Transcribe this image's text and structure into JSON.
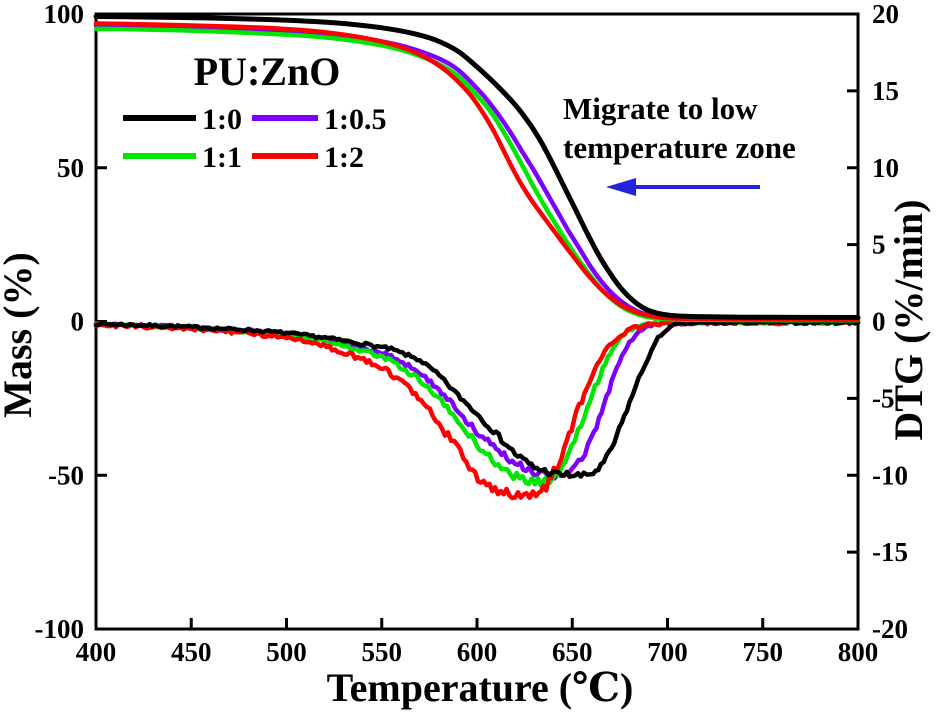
{
  "chart_data": {
    "type": "line",
    "title": "",
    "xlabel": "Temperature (℃)",
    "ylabel_left": "Mass (%)",
    "ylabel_right": "DTG (%/min)",
    "x_range": [
      400,
      800
    ],
    "x_ticks": [
      400,
      450,
      500,
      550,
      600,
      650,
      700,
      750,
      800
    ],
    "y_left_range": [
      -100,
      100
    ],
    "y_left_ticks": [
      -100,
      -50,
      0,
      50,
      100
    ],
    "y_right_range": [
      -20,
      20
    ],
    "y_right_ticks": [
      -20,
      -15,
      -10,
      -5,
      0,
      5,
      10,
      15,
      20
    ],
    "grid": false,
    "frame": true,
    "legend": {
      "title": "PU:ZnO",
      "position": "upper-left",
      "entries": [
        {
          "label": "1:0",
          "color": "#000000"
        },
        {
          "label": "1:0.5",
          "color": "#7D00FA"
        },
        {
          "label": "1:1",
          "color": "#00E600"
        },
        {
          "label": "1:2",
          "color": "#FF0000"
        }
      ]
    },
    "annotation": {
      "line1": "Migrate to low",
      "line2": "temperature zone",
      "color": "#2323D9",
      "arrow_direction": "left"
    },
    "series_tg": [
      {
        "name": "1:0",
        "color": "#000000",
        "points": [
          [
            400,
            99.2
          ],
          [
            430,
            99.0
          ],
          [
            460,
            98.7
          ],
          [
            490,
            98.2
          ],
          [
            510,
            97.7
          ],
          [
            530,
            96.9
          ],
          [
            550,
            95.5
          ],
          [
            565,
            93.9
          ],
          [
            578,
            91.6
          ],
          [
            590,
            87.9
          ],
          [
            600,
            82.8
          ],
          [
            610,
            77.0
          ],
          [
            620,
            70.5
          ],
          [
            628,
            64.0
          ],
          [
            634,
            58.0
          ],
          [
            640,
            51.0
          ],
          [
            646,
            43.5
          ],
          [
            652,
            36.0
          ],
          [
            658,
            28.5
          ],
          [
            664,
            21.5
          ],
          [
            670,
            15.5
          ],
          [
            676,
            10.5
          ],
          [
            682,
            6.8
          ],
          [
            688,
            4.2
          ],
          [
            694,
            2.8
          ],
          [
            700,
            2.1
          ],
          [
            706,
            1.8
          ],
          [
            715,
            1.6
          ],
          [
            740,
            1.4
          ],
          [
            800,
            1.3
          ]
        ]
      },
      {
        "name": "1:0.5",
        "color": "#7D00FA",
        "points": [
          [
            400,
            96.2
          ],
          [
            430,
            95.9
          ],
          [
            460,
            95.4
          ],
          [
            490,
            94.7
          ],
          [
            510,
            94.0
          ],
          [
            530,
            92.9
          ],
          [
            550,
            91.1
          ],
          [
            565,
            88.9
          ],
          [
            580,
            85.5
          ],
          [
            590,
            81.9
          ],
          [
            600,
            75.8
          ],
          [
            608,
            70.0
          ],
          [
            616,
            63.0
          ],
          [
            624,
            55.0
          ],
          [
            630,
            49.0
          ],
          [
            636,
            42.5
          ],
          [
            642,
            36.0
          ],
          [
            648,
            29.5
          ],
          [
            654,
            23.5
          ],
          [
            660,
            17.5
          ],
          [
            666,
            12.5
          ],
          [
            672,
            8.5
          ],
          [
            678,
            5.5
          ],
          [
            684,
            3.4
          ],
          [
            690,
            2.1
          ],
          [
            696,
            1.3
          ],
          [
            710,
            0.8
          ],
          [
            740,
            0.6
          ],
          [
            800,
            0.5
          ]
        ]
      },
      {
        "name": "1:1",
        "color": "#00E600",
        "points": [
          [
            400,
            95.2
          ],
          [
            430,
            94.9
          ],
          [
            460,
            94.4
          ],
          [
            490,
            93.6
          ],
          [
            510,
            92.9
          ],
          [
            530,
            91.7
          ],
          [
            550,
            89.8
          ],
          [
            565,
            87.4
          ],
          [
            580,
            83.7
          ],
          [
            590,
            79.9
          ],
          [
            600,
            73.5
          ],
          [
            608,
            67.5
          ],
          [
            616,
            59.5
          ],
          [
            624,
            50.5
          ],
          [
            630,
            43.5
          ],
          [
            636,
            37.0
          ],
          [
            642,
            31.0
          ],
          [
            648,
            25.0
          ],
          [
            654,
            19.5
          ],
          [
            660,
            14.5
          ],
          [
            666,
            10.0
          ],
          [
            672,
            6.5
          ],
          [
            678,
            4.0
          ],
          [
            684,
            2.4
          ],
          [
            690,
            1.4
          ],
          [
            696,
            0.9
          ],
          [
            710,
            0.6
          ],
          [
            740,
            0.45
          ],
          [
            800,
            0.4
          ]
        ]
      },
      {
        "name": "1:2",
        "color": "#FF0000",
        "points": [
          [
            400,
            96.9
          ],
          [
            430,
            96.6
          ],
          [
            460,
            96.1
          ],
          [
            480,
            95.7
          ],
          [
            500,
            95.1
          ],
          [
            515,
            94.4
          ],
          [
            530,
            93.3
          ],
          [
            545,
            91.7
          ],
          [
            555,
            90.2
          ],
          [
            565,
            88.1
          ],
          [
            575,
            85.2
          ],
          [
            585,
            80.9
          ],
          [
            595,
            74.8
          ],
          [
            600,
            70.8
          ],
          [
            605,
            66.0
          ],
          [
            610,
            60.5
          ],
          [
            616,
            53.0
          ],
          [
            622,
            46.0
          ],
          [
            628,
            40.0
          ],
          [
            634,
            34.8
          ],
          [
            640,
            29.8
          ],
          [
            646,
            24.8
          ],
          [
            652,
            20.0
          ],
          [
            658,
            15.3
          ],
          [
            664,
            11.2
          ],
          [
            670,
            7.8
          ],
          [
            676,
            5.2
          ],
          [
            682,
            3.4
          ],
          [
            688,
            2.2
          ],
          [
            694,
            1.5
          ],
          [
            700,
            1.1
          ],
          [
            715,
            0.85
          ],
          [
            740,
            0.7
          ],
          [
            800,
            0.6
          ]
        ]
      }
    ],
    "series_dtg": [
      {
        "name": "1:0",
        "color": "#000000",
        "noise": 0.9,
        "points": [
          [
            400,
            -0.15
          ],
          [
            440,
            -0.3
          ],
          [
            480,
            -0.55
          ],
          [
            500,
            -0.75
          ],
          [
            520,
            -1.05
          ],
          [
            540,
            -1.45
          ],
          [
            555,
            -1.8
          ],
          [
            570,
            -2.5
          ],
          [
            580,
            -3.5
          ],
          [
            590,
            -4.8
          ],
          [
            600,
            -6.0
          ],
          [
            610,
            -7.3
          ],
          [
            620,
            -8.6
          ],
          [
            630,
            -9.5
          ],
          [
            640,
            -9.9
          ],
          [
            650,
            -10.0
          ],
          [
            656,
            -10.05
          ],
          [
            661,
            -9.85
          ],
          [
            665,
            -9.45
          ],
          [
            668,
            -8.9
          ],
          [
            672,
            -7.9
          ],
          [
            676,
            -6.6
          ],
          [
            680,
            -5.3
          ],
          [
            685,
            -3.7
          ],
          [
            690,
            -2.3
          ],
          [
            695,
            -1.1
          ],
          [
            700,
            -0.45
          ],
          [
            705,
            -0.18
          ],
          [
            712,
            -0.1
          ],
          [
            730,
            -0.07
          ],
          [
            800,
            -0.06
          ]
        ]
      },
      {
        "name": "1:0.5",
        "color": "#7D00FA",
        "noise": 1.0,
        "points": [
          [
            400,
            -0.17
          ],
          [
            440,
            -0.33
          ],
          [
            480,
            -0.6
          ],
          [
            500,
            -0.82
          ],
          [
            520,
            -1.15
          ],
          [
            540,
            -1.7
          ],
          [
            555,
            -2.25
          ],
          [
            570,
            -3.3
          ],
          [
            580,
            -4.4
          ],
          [
            590,
            -5.8
          ],
          [
            600,
            -7.2
          ],
          [
            610,
            -8.3
          ],
          [
            620,
            -9.2
          ],
          [
            630,
            -9.8
          ],
          [
            638,
            -10.05
          ],
          [
            645,
            -10.05
          ],
          [
            650,
            -9.7
          ],
          [
            655,
            -9.0
          ],
          [
            660,
            -7.7
          ],
          [
            664,
            -6.3
          ],
          [
            668,
            -4.9
          ],
          [
            672,
            -3.5
          ],
          [
            676,
            -2.3
          ],
          [
            680,
            -1.4
          ],
          [
            685,
            -0.7
          ],
          [
            690,
            -0.32
          ],
          [
            696,
            -0.14
          ],
          [
            710,
            -0.08
          ],
          [
            800,
            -0.06
          ]
        ]
      },
      {
        "name": "1:1",
        "color": "#00E600",
        "noise": 1.0,
        "points": [
          [
            400,
            -0.18
          ],
          [
            440,
            -0.36
          ],
          [
            480,
            -0.66
          ],
          [
            500,
            -0.9
          ],
          [
            520,
            -1.3
          ],
          [
            540,
            -1.9
          ],
          [
            555,
            -2.55
          ],
          [
            570,
            -3.8
          ],
          [
            580,
            -5.0
          ],
          [
            590,
            -6.5
          ],
          [
            600,
            -8.0
          ],
          [
            608,
            -9.0
          ],
          [
            616,
            -9.8
          ],
          [
            624,
            -10.3
          ],
          [
            632,
            -10.45
          ],
          [
            638,
            -10.3
          ],
          [
            643,
            -9.8
          ],
          [
            648,
            -8.7
          ],
          [
            653,
            -7.2
          ],
          [
            658,
            -5.6
          ],
          [
            662,
            -4.3
          ],
          [
            666,
            -3.1
          ],
          [
            670,
            -2.0
          ],
          [
            675,
            -1.1
          ],
          [
            680,
            -0.55
          ],
          [
            687,
            -0.22
          ],
          [
            695,
            -0.1
          ],
          [
            710,
            -0.07
          ],
          [
            800,
            -0.06
          ]
        ]
      },
      {
        "name": "1:2",
        "color": "#FF0000",
        "noise": 1.3,
        "points": [
          [
            400,
            -0.2
          ],
          [
            440,
            -0.4
          ],
          [
            480,
            -0.75
          ],
          [
            500,
            -1.05
          ],
          [
            515,
            -1.45
          ],
          [
            530,
            -2.0
          ],
          [
            542,
            -2.55
          ],
          [
            552,
            -3.2
          ],
          [
            562,
            -4.0
          ],
          [
            572,
            -5.2
          ],
          [
            580,
            -6.7
          ],
          [
            588,
            -8.0
          ],
          [
            596,
            -9.4
          ],
          [
            602,
            -10.3
          ],
          [
            608,
            -10.9
          ],
          [
            614,
            -11.2
          ],
          [
            620,
            -11.3
          ],
          [
            626,
            -11.45
          ],
          [
            631,
            -11.3
          ],
          [
            635,
            -10.9
          ],
          [
            639,
            -10.2
          ],
          [
            643,
            -9.1
          ],
          [
            647,
            -7.8
          ],
          [
            651,
            -6.4
          ],
          [
            655,
            -5.1
          ],
          [
            659,
            -3.9
          ],
          [
            663,
            -2.9
          ],
          [
            667,
            -2.0
          ],
          [
            671,
            -1.35
          ],
          [
            676,
            -0.8
          ],
          [
            682,
            -0.45
          ],
          [
            690,
            -0.2
          ],
          [
            700,
            -0.1
          ],
          [
            715,
            -0.07
          ],
          [
            800,
            -0.06
          ]
        ]
      }
    ]
  }
}
